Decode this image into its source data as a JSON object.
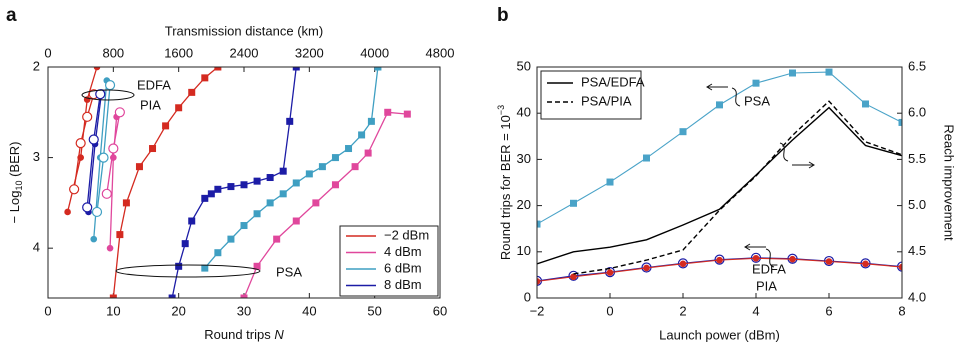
{
  "chart_data": [
    {
      "type": "line",
      "panel_label": "a",
      "xlabel": [
        "Round trips ",
        "N"
      ],
      "x2label": "Transmission distance (km)",
      "ylabel": [
        "− Log",
        "10",
        " (BER)"
      ],
      "xlim": [
        0,
        60
      ],
      "xticks": [
        0,
        10,
        20,
        30,
        40,
        50,
        60
      ],
      "x2lim": [
        0,
        4800
      ],
      "x2ticks": [
        0,
        800,
        1600,
        2400,
        3200,
        4000,
        4800
      ],
      "ylim": [
        2,
        4.55
      ],
      "yticks": [
        2,
        3,
        4
      ],
      "y_inverted": true,
      "legend": "lower right",
      "annotations": [
        "EDFA",
        "PIA",
        "PSA"
      ],
      "series": [
        {
          "name": "−2 dBm",
          "color": "#d42a20",
          "edfa": {
            "x": [
              4,
              5,
              6,
              7
            ],
            "y": [
              3.35,
              2.84,
              2.55,
              2.3
            ]
          },
          "pia": {
            "x": [
              3,
              5,
              6,
              7.5
            ],
            "y": [
              3.6,
              3.0,
              2.36,
              2.0
            ]
          },
          "psa": {
            "x": [
              10,
              11,
              12,
              14,
              16,
              18,
              20,
              22,
              24,
              26
            ],
            "y": [
              4.55,
              3.85,
              3.5,
              3.1,
              2.9,
              2.65,
              2.45,
              2.28,
              2.12,
              2.0
            ]
          }
        },
        {
          "name": "4 dBm",
          "color": "#e0479c",
          "edfa": {
            "x": [
              9,
              10,
              11
            ],
            "y": [
              3.4,
              2.9,
              2.5
            ]
          },
          "pia": {
            "x": [
              9.5,
              10,
              10.5
            ],
            "y": [
              4.0,
              3.0,
              2.55
            ]
          },
          "psa": {
            "x": [
              30,
              32,
              35,
              38,
              41,
              44,
              47,
              49,
              52,
              55
            ],
            "y": [
              4.55,
              4.2,
              3.9,
              3.7,
              3.5,
              3.3,
              3.1,
              2.95,
              2.5,
              2.52
            ]
          }
        },
        {
          "name": "6 dBm",
          "color": "#3f9fc2",
          "edfa": {
            "x": [
              7.5,
              8.5,
              9.5
            ],
            "y": [
              3.6,
              3.0,
              2.2
            ]
          },
          "pia": {
            "x": [
              7,
              8,
              9
            ],
            "y": [
              3.9,
              3.0,
              2.15
            ]
          },
          "psa": {
            "x": [
              24,
              26,
              28,
              30,
              32,
              34,
              36,
              38,
              40,
              42,
              44,
              46,
              48,
              49.5,
              50.5
            ],
            "y": [
              4.22,
              4.05,
              3.9,
              3.75,
              3.62,
              3.5,
              3.4,
              3.28,
              3.18,
              3.1,
              3.0,
              2.9,
              2.75,
              2.6,
              2.0
            ]
          }
        },
        {
          "name": "8 dBm",
          "color": "#1c1ca6",
          "edfa": {
            "x": [
              6,
              7,
              8
            ],
            "y": [
              3.55,
              2.8,
              2.3
            ]
          },
          "pia": {
            "x": [
              6.2,
              7.2,
              8.2
            ],
            "y": [
              3.6,
              2.85,
              2.28
            ]
          },
          "psa": {
            "x": [
              19,
              20,
              21,
              22,
              24,
              25,
              26,
              28,
              30,
              32,
              34,
              36,
              37,
              38
            ],
            "y": [
              4.55,
              4.2,
              3.95,
              3.7,
              3.45,
              3.4,
              3.35,
              3.32,
              3.3,
              3.26,
              3.22,
              3.15,
              2.6,
              2.0
            ]
          }
        }
      ]
    },
    {
      "type": "line",
      "panel_label": "b",
      "xlabel": "Launch power (dBm)",
      "ylabel": [
        "Round trips for BER = 10",
        "−3"
      ],
      "y2label": "Reach improvement",
      "xlim": [
        -2,
        8
      ],
      "xticks": [
        {
          "value": -2,
          "label": "−2"
        },
        0,
        2,
        4,
        6,
        8
      ],
      "ylim": [
        0,
        50
      ],
      "yticks": [
        0,
        10,
        20,
        30,
        40,
        50
      ],
      "y2lim": [
        4.0,
        6.5
      ],
      "y2ticks": [
        {
          "value": 4.0,
          "label": "4.0"
        },
        4.5,
        {
          "value": 5.0,
          "label": "5.0"
        },
        5.5,
        {
          "value": 6.0,
          "label": "6.0"
        },
        6.5
      ],
      "legend": "upper left",
      "x": [
        -2,
        -1,
        0,
        1,
        2,
        3,
        4,
        5,
        6,
        7,
        8
      ],
      "series": [
        {
          "name": "PSA",
          "color": "#4aa3c8",
          "marker": "square",
          "values": [
            16,
            20.5,
            25.1,
            30.3,
            36,
            41.8,
            46.5,
            48.7,
            48.9,
            42,
            38
          ]
        },
        {
          "name": "EDFA",
          "color": "#1c1ca6",
          "marker": "open-circle",
          "values": [
            3.7,
            4.8,
            5.6,
            6.6,
            7.5,
            8.3,
            8.7,
            8.5,
            8.0,
            7.5,
            6.8
          ]
        },
        {
          "name": "PIA",
          "color": "#d42a20",
          "marker": "filled-circle",
          "values": [
            3.6,
            4.6,
            5.5,
            6.5,
            7.4,
            8.2,
            8.6,
            8.4,
            7.9,
            7.4,
            6.7
          ]
        },
        {
          "name": "PSA/EDFA",
          "color": "#000000",
          "axis": "y2",
          "dash": false,
          "values": [
            4.37,
            4.5,
            4.55,
            4.63,
            4.79,
            4.96,
            5.33,
            5.71,
            6.06,
            5.65,
            5.54
          ]
        },
        {
          "name": "PSA/PIA",
          "color": "#000000",
          "axis": "y2",
          "dash": true,
          "values": [
            null,
            4.26,
            4.32,
            4.41,
            4.52,
            4.95,
            5.32,
            5.76,
            6.13,
            5.69,
            5.55
          ]
        }
      ]
    }
  ]
}
